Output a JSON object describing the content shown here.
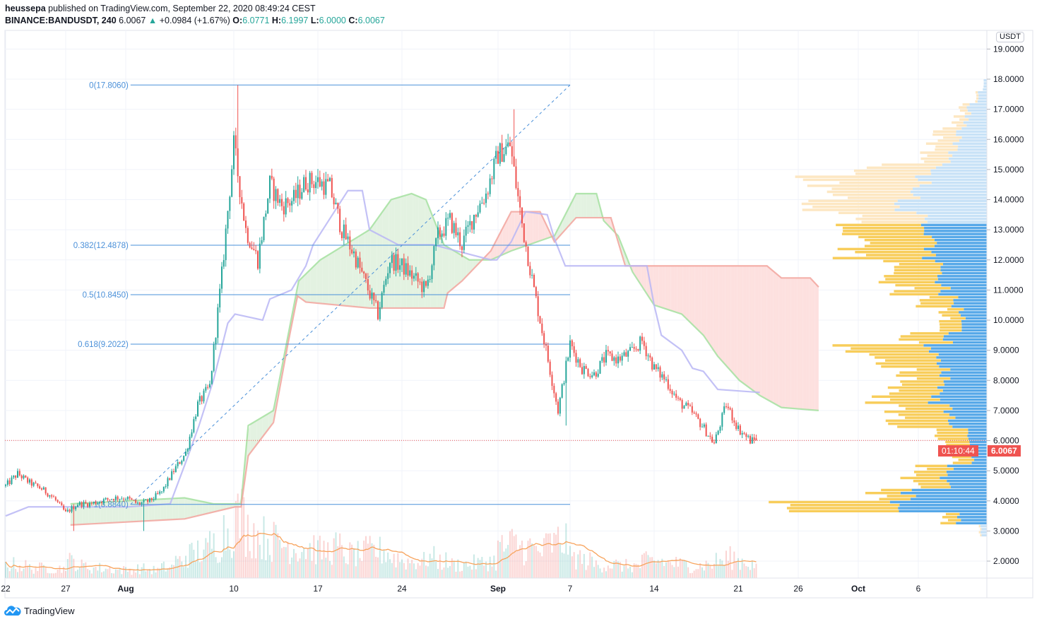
{
  "header": {
    "author": "heussepa",
    "published": "published on TradingView.com, September 22, 2020 08:49:24 CEST",
    "symbol": "BINANCE:BANDUSDT, 240",
    "last": "6.0067",
    "change": "+0.0984 (+1.67%)",
    "o_label": "O:",
    "o": "6.0771",
    "h_label": "H:",
    "h": "6.1997",
    "l_label": "L:",
    "l": "6.0000",
    "c_label": "C:",
    "c": "6.0067"
  },
  "price_axis": {
    "currency": "USDT",
    "current_price": "6.0067",
    "countdown": "01:10:44"
  },
  "branding": {
    "logo_text": "TradingView"
  },
  "colors": {
    "up": "#26a69a",
    "down": "#ef5350",
    "fib": "#4a90d9",
    "lagging": "#b9b6f5",
    "spanA": "#a5e0a0",
    "spanB": "#f2a59d",
    "cloud_up": "#e3f2e1",
    "cloud_down": "#fde0df",
    "vol_ma": "#f7a35c",
    "profile_up": "#56a8e8",
    "profile_down": "#f8cd5a",
    "profile_up_light": "#c8e2f7",
    "profile_down_light": "#fde7c2"
  },
  "chart_data": {
    "type": "candlestick",
    "title": "BINANCE:BANDUSDT, 240",
    "ylabel": "USDT",
    "ylim": [
      1.5,
      19.2
    ],
    "y_ticks": [
      "2.0000",
      "3.0000",
      "4.0000",
      "5.0000",
      "6.0000",
      "7.0000",
      "8.0000",
      "9.0000",
      "10.0000",
      "11.0000",
      "12.0000",
      "13.0000",
      "14.0000",
      "15.0000",
      "16.0000",
      "17.0000",
      "18.0000",
      "19.0000"
    ],
    "x_ticks": [
      {
        "label": "22",
        "day": 0
      },
      {
        "label": "27",
        "day": 5
      },
      {
        "label": "Aug",
        "day": 10
      },
      {
        "label": "10",
        "day": 19
      },
      {
        "label": "17",
        "day": 26
      },
      {
        "label": "24",
        "day": 33
      },
      {
        "label": "Sep",
        "day": 41
      },
      {
        "label": "7",
        "day": 47
      },
      {
        "label": "14",
        "day": 54
      },
      {
        "label": "21",
        "day": 61
      },
      {
        "label": "26",
        "day": 66
      },
      {
        "label": "Oct",
        "day": 71
      },
      {
        "label": "6",
        "day": 76
      }
    ],
    "x_start": "2020-07-22",
    "daily_closes": [
      4.5,
      4.9,
      4.6,
      4.4,
      4.1,
      3.6,
      3.9,
      3.9,
      4.0,
      4.1,
      4.1,
      3.9,
      4.0,
      4.3,
      5.0,
      5.6,
      7.2,
      7.8,
      11.5,
      15.8,
      13.0,
      12.0,
      14.5,
      13.8,
      14.0,
      14.6,
      14.6,
      14.4,
      13.0,
      12.2,
      11.2,
      10.2,
      12.0,
      11.8,
      11.4,
      11.0,
      12.8,
      13.3,
      12.5,
      13.5,
      14.2,
      15.5,
      15.8,
      13.2,
      11.0,
      9.0,
      7.0,
      9.2,
      8.4,
      8.2,
      8.8,
      8.7,
      8.9,
      9.3,
      8.4,
      8.0,
      7.3,
      7.0,
      6.5,
      5.9,
      7.2,
      6.4,
      6.0
    ],
    "extremes": [
      [
        19.3,
        "high",
        17.8
      ],
      [
        42.3,
        "high",
        17.0
      ],
      [
        46.6,
        "low",
        6.5
      ],
      [
        5.6,
        "low",
        3.0
      ],
      [
        11.5,
        "low",
        3.0
      ]
    ],
    "last_candle": {
      "open": 6.0771,
      "high": 6.1997,
      "low": 6.0,
      "close": 6.0067
    },
    "daily_volume": [
      20,
      18,
      15,
      15,
      14,
      25,
      18,
      15,
      14,
      12,
      12,
      14,
      12,
      16,
      25,
      35,
      40,
      50,
      70,
      90,
      70,
      60,
      55,
      50,
      45,
      45,
      40,
      45,
      35,
      35,
      40,
      40,
      30,
      25,
      25,
      30,
      25,
      20,
      20,
      22,
      25,
      45,
      50,
      45,
      40,
      50,
      55,
      30,
      25,
      20,
      20,
      18,
      18,
      25,
      25,
      22,
      20,
      18,
      20,
      25,
      30,
      25,
      20
    ],
    "fibonacci": {
      "from_day": 10.4,
      "to_day": 47,
      "levels": [
        {
          "label": "0(17.8060)",
          "ratio": 0,
          "price": 17.806
        },
        {
          "label": "0.382(12.4878)",
          "ratio": 0.382,
          "price": 12.4878
        },
        {
          "label": "0.5(10.8450)",
          "ratio": 0.5,
          "price": 10.845
        },
        {
          "label": "0.618(9.2022)",
          "ratio": 0.618,
          "price": 9.2022
        },
        {
          "label": "1(3.8840)",
          "ratio": 1,
          "price": 3.884
        }
      ]
    },
    "ichimoku": {
      "lagging_line": [
        [
          0,
          3.5
        ],
        [
          1.9,
          3.8
        ],
        [
          10.2,
          3.8
        ],
        [
          13.7,
          3.9
        ],
        [
          15.2,
          5.5
        ],
        [
          16.1,
          6.5
        ],
        [
          17.3,
          8.0
        ],
        [
          18.5,
          9.9
        ],
        [
          19.1,
          10.2
        ],
        [
          21.4,
          10.0
        ],
        [
          22,
          10.7
        ],
        [
          23.8,
          11.0
        ],
        [
          25,
          11.8
        ],
        [
          25.6,
          12.5
        ],
        [
          28.5,
          14.3
        ],
        [
          29.7,
          14.3
        ],
        [
          30.3,
          13.0
        ],
        [
          32.7,
          12.5
        ],
        [
          35.6,
          12.5
        ],
        [
          40.4,
          12.0
        ],
        [
          40.9,
          12.0
        ],
        [
          42.1,
          12.6
        ],
        [
          43.3,
          13.6
        ],
        [
          45.1,
          13.5
        ],
        [
          45.7,
          12.7
        ],
        [
          46.6,
          11.8
        ],
        [
          53.4,
          11.8
        ],
        [
          54,
          10.5
        ],
        [
          54.6,
          9.5
        ],
        [
          56.3,
          9.0
        ],
        [
          57.2,
          8.4
        ],
        [
          58.1,
          8.3
        ],
        [
          59.3,
          7.7
        ],
        [
          62.8,
          7.6
        ]
      ],
      "span_a": [
        [
          5.4,
          3.9
        ],
        [
          14.9,
          4.1
        ],
        [
          17.3,
          3.9
        ],
        [
          19.6,
          3.9
        ],
        [
          20.2,
          6.5
        ],
        [
          22.3,
          7.0
        ],
        [
          24.4,
          11.3
        ],
        [
          26.2,
          12.0
        ],
        [
          30.3,
          13.0
        ],
        [
          32.1,
          14.0
        ],
        [
          33.8,
          14.2
        ],
        [
          35,
          14.0
        ],
        [
          36.5,
          12.5
        ],
        [
          38.6,
          12.0
        ],
        [
          40.4,
          12.0
        ],
        [
          42.1,
          12.3
        ],
        [
          45.7,
          12.8
        ],
        [
          47.5,
          14.2
        ],
        [
          49.2,
          14.2
        ],
        [
          49.8,
          13.3
        ],
        [
          51,
          12.8
        ],
        [
          52.2,
          11.6
        ],
        [
          54,
          10.5
        ],
        [
          56.3,
          10.2
        ],
        [
          58.1,
          9.5
        ],
        [
          59.3,
          8.8
        ],
        [
          61.1,
          8.0
        ],
        [
          62.8,
          7.5
        ],
        [
          64.6,
          7.1
        ],
        [
          67.7,
          7.0
        ]
      ],
      "span_b": [
        [
          5.4,
          3.2
        ],
        [
          14.9,
          3.4
        ],
        [
          19.1,
          3.8
        ],
        [
          19.6,
          3.8
        ],
        [
          20.2,
          5.5
        ],
        [
          22.3,
          6.6
        ],
        [
          23.5,
          9.2
        ],
        [
          24.3,
          10.8
        ],
        [
          25,
          10.6
        ],
        [
          30.3,
          10.4
        ],
        [
          36.5,
          10.4
        ],
        [
          36.8,
          10.9
        ],
        [
          38,
          11.3
        ],
        [
          40.4,
          12.3
        ],
        [
          42.1,
          13.6
        ],
        [
          44.5,
          13.6
        ],
        [
          45.7,
          12.6
        ],
        [
          47.5,
          13.4
        ],
        [
          50.4,
          13.4
        ],
        [
          51.6,
          11.8
        ],
        [
          63.4,
          11.8
        ],
        [
          64.6,
          11.4
        ],
        [
          67,
          11.4
        ],
        [
          67.7,
          11.1
        ]
      ]
    },
    "volume_profile": {
      "bin_size": 0.4,
      "value_area": [
        3.2,
        13.2
      ],
      "rows": [
        [
          3.0,
          8,
          2
        ],
        [
          3.4,
          40,
          20
        ],
        [
          3.8,
          140,
          175
        ],
        [
          4.2,
          110,
          45
        ],
        [
          4.6,
          60,
          50
        ],
        [
          5.0,
          50,
          40
        ],
        [
          5.4,
          20,
          25
        ],
        [
          5.8,
          25,
          35
        ],
        [
          6.2,
          30,
          50
        ],
        [
          6.6,
          50,
          80
        ],
        [
          7.0,
          55,
          75
        ],
        [
          7.4,
          75,
          80
        ],
        [
          7.8,
          65,
          65
        ],
        [
          8.2,
          60,
          55
        ],
        [
          8.6,
          70,
          85
        ],
        [
          9.0,
          80,
          115
        ],
        [
          9.4,
          55,
          55
        ],
        [
          9.8,
          40,
          35
        ],
        [
          10.2,
          35,
          25
        ],
        [
          10.6,
          45,
          45
        ],
        [
          11.0,
          60,
          60
        ],
        [
          11.4,
          65,
          70
        ],
        [
          11.8,
          70,
          70
        ],
        [
          12.2,
          80,
          110
        ],
        [
          12.6,
          75,
          100
        ],
        [
          13.0,
          85,
          110
        ],
        [
          13.4,
          95,
          105
        ],
        [
          13.8,
          115,
          115
        ],
        [
          14.2,
          110,
          120
        ],
        [
          14.6,
          90,
          150
        ],
        [
          15.0,
          70,
          95
        ],
        [
          15.4,
          55,
          40
        ],
        [
          15.8,
          45,
          35
        ],
        [
          16.2,
          40,
          30
        ],
        [
          16.6,
          30,
          15
        ],
        [
          17.0,
          25,
          10
        ],
        [
          17.4,
          12,
          3
        ],
        [
          17.8,
          5,
          0
        ]
      ]
    }
  }
}
